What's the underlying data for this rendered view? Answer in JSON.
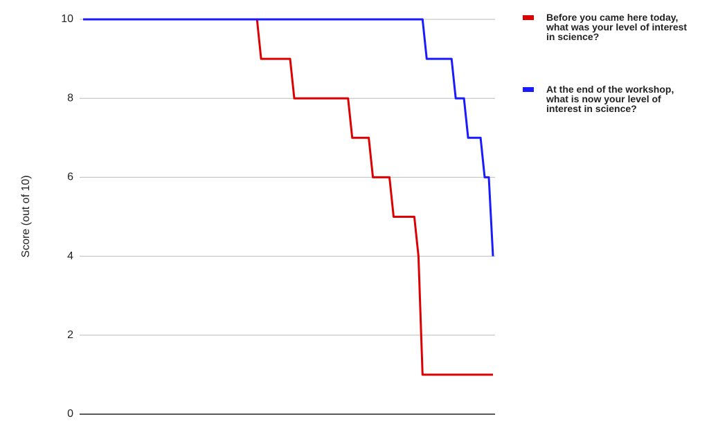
{
  "chart_data": {
    "type": "line",
    "y_label": "Score (out of 10)",
    "categories": [
      null,
      null,
      null,
      null,
      null,
      null,
      null,
      null,
      null,
      null,
      null,
      null,
      null,
      null,
      null,
      null,
      null,
      null,
      null,
      null,
      null,
      null,
      null,
      null,
      null,
      null,
      null,
      null,
      null,
      null,
      null,
      null,
      null,
      null,
      null,
      null,
      null,
      null,
      null,
      null,
      null,
      null,
      null,
      null,
      null,
      null,
      null,
      null,
      null,
      null,
      null,
      null,
      null,
      null,
      null,
      null,
      null,
      null,
      null,
      null,
      null,
      null,
      null,
      null,
      null,
      null,
      null,
      null,
      null,
      null,
      null,
      null,
      null,
      null,
      null,
      null,
      null,
      null,
      null,
      null,
      null,
      null,
      null,
      null,
      null,
      null,
      null,
      null,
      null,
      null,
      null,
      null,
      null,
      null,
      null,
      null,
      null,
      null,
      null,
      null
    ],
    "series": [
      {
        "name": "Before you came here today, what was your level of interest in science?",
        "color": "#dd0000",
        "values": [
          10,
          10,
          10,
          10,
          10,
          10,
          10,
          10,
          10,
          10,
          10,
          10,
          10,
          10,
          10,
          10,
          10,
          10,
          10,
          10,
          10,
          10,
          10,
          10,
          10,
          10,
          10,
          10,
          10,
          10,
          10,
          10,
          10,
          10,
          10,
          10,
          10,
          10,
          10,
          10,
          10,
          10,
          10,
          9,
          9,
          9,
          9,
          9,
          9,
          9,
          9,
          8,
          8,
          8,
          8,
          8,
          8,
          8,
          8,
          8,
          8,
          8,
          8,
          8,
          8,
          7,
          7,
          7,
          7,
          7,
          6,
          6,
          6,
          6,
          6,
          5,
          5,
          5,
          5,
          5,
          5,
          4,
          1,
          1,
          1,
          1,
          1,
          1,
          1,
          1,
          1,
          1,
          1,
          1,
          1,
          1,
          1,
          1,
          1,
          1
        ]
      },
      {
        "name": "At the end of the workshop, what is now your level of interest in science?",
        "color": "#1a1aff",
        "values": [
          10,
          10,
          10,
          10,
          10,
          10,
          10,
          10,
          10,
          10,
          10,
          10,
          10,
          10,
          10,
          10,
          10,
          10,
          10,
          10,
          10,
          10,
          10,
          10,
          10,
          10,
          10,
          10,
          10,
          10,
          10,
          10,
          10,
          10,
          10,
          10,
          10,
          10,
          10,
          10,
          10,
          10,
          10,
          10,
          10,
          10,
          10,
          10,
          10,
          10,
          10,
          10,
          10,
          10,
          10,
          10,
          10,
          10,
          10,
          10,
          10,
          10,
          10,
          10,
          10,
          10,
          10,
          10,
          10,
          10,
          10,
          10,
          10,
          10,
          10,
          10,
          10,
          10,
          10,
          10,
          10,
          10,
          10,
          9,
          9,
          9,
          9,
          9,
          9,
          9,
          8,
          8,
          8,
          7,
          7,
          7,
          7,
          6,
          6,
          4
        ]
      }
    ],
    "ylim": [
      0,
      10
    ],
    "yticks": [
      0,
      2,
      4,
      6,
      8,
      10
    ],
    "grid": true,
    "legend": "right"
  }
}
